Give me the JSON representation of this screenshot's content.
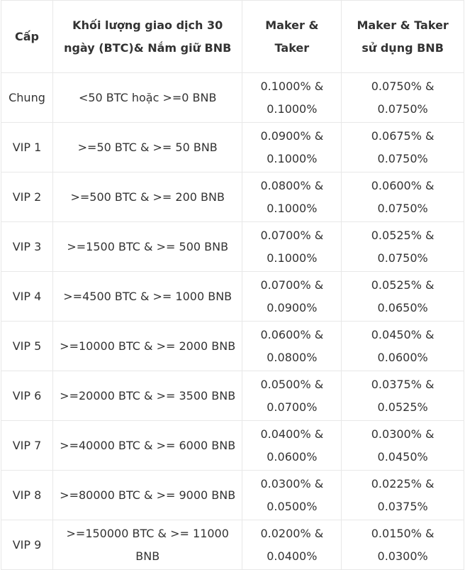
{
  "table": {
    "headers": [
      "Cấp",
      "Khối lượng giao dịch 30 ngày (BTC)& Nắm giữ BNB",
      "Maker & Taker",
      "Maker & Taker sử dụng BNB"
    ],
    "rows": [
      [
        "Chung",
        "<50 BTC hoặc >=0 BNB",
        "0.1000% & 0.1000%",
        "0.0750% & 0.0750%"
      ],
      [
        "VIP 1",
        ">=50 BTC & >= 50 BNB",
        "0.0900% & 0.1000%",
        "0.0675% & 0.0750%"
      ],
      [
        "VIP 2",
        ">=500 BTC & >= 200 BNB",
        "0.0800% & 0.1000%",
        "0.0600% & 0.0750%"
      ],
      [
        "VIP 3",
        ">=1500 BTC & >= 500 BNB",
        "0.0700% & 0.1000%",
        "0.0525% & 0.0750%"
      ],
      [
        "VIP 4",
        ">=4500 BTC & >= 1000 BNB",
        "0.0700% & 0.0900%",
        "0.0525% & 0.0650%"
      ],
      [
        "VIP 5",
        ">=10000 BTC & >= 2000 BNB",
        "0.0600% & 0.0800%",
        "0.0450% & 0.0600%"
      ],
      [
        "VIP 6",
        ">=20000 BTC & >= 3500 BNB",
        "0.0500% & 0.0700%",
        "0.0375% & 0.0525%"
      ],
      [
        "VIP 7",
        ">=40000 BTC & >= 6000 BNB",
        "0.0400% & 0.0600%",
        "0.0300% & 0.0450%"
      ],
      [
        "VIP 8",
        ">=80000 BTC & >= 9000 BNB",
        "0.0300% & 0.0500%",
        "0.0225% & 0.0375%"
      ],
      [
        "VIP 9",
        ">=150000 BTC & >= 11000 BNB",
        "0.0200% & 0.0400%",
        "0.0150% & 0.0300%"
      ]
    ]
  }
}
